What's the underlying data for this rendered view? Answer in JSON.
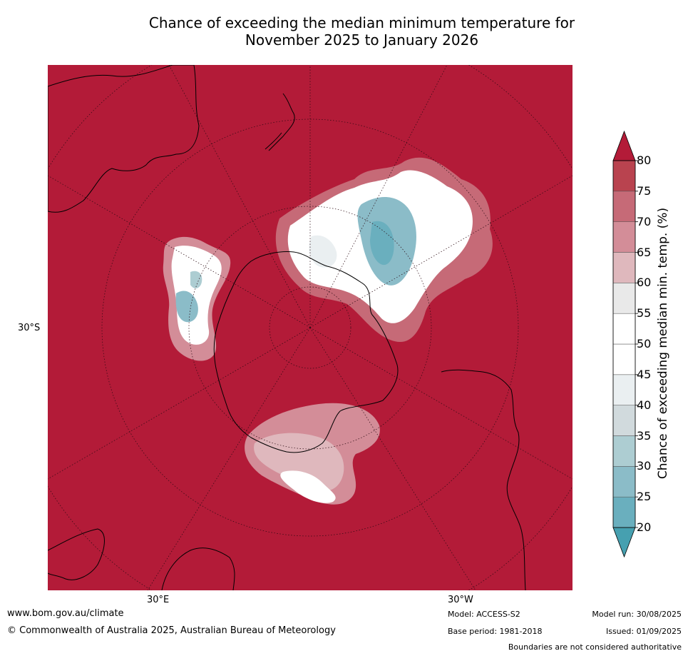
{
  "title": {
    "line1": "Chance of exceeding the median minimum temperature for",
    "line2": "November 2025 to January 2026"
  },
  "map": {
    "latitude_label": "30°S",
    "longitude_labels": [
      "30°E",
      "30°W"
    ],
    "projection": "south polar stereographic",
    "background_color": "#b31b38"
  },
  "colorbar": {
    "title": "Chance of exceeding median min. temp. (%)",
    "ticks": [
      "20",
      "25",
      "30",
      "35",
      "40",
      "45",
      "50",
      "55",
      "60",
      "65",
      "70",
      "75",
      "80"
    ],
    "colors": [
      "#46a0b0",
      "#6aafbe",
      "#8bbcc8",
      "#adcdd2",
      "#d1dadd",
      "#eaeff1",
      "#ffffff",
      "#ffffff",
      "#e9e9e9",
      "#dfb8bd",
      "#d38d98",
      "#c66a77",
      "#b9434f",
      "#b31b38"
    ]
  },
  "footer": {
    "website": "www.bom.gov.au/climate",
    "copyright": "© Commonwealth of Australia 2025, Australian Bureau of Meteorology",
    "model": "Model: ACCESS-S2",
    "base_period": "Base period: 1981-2018",
    "model_run": "Model run: 30/08/2025",
    "issued": "Issued: 01/09/2025",
    "boundaries": "Boundaries are not considered authoritative"
  }
}
